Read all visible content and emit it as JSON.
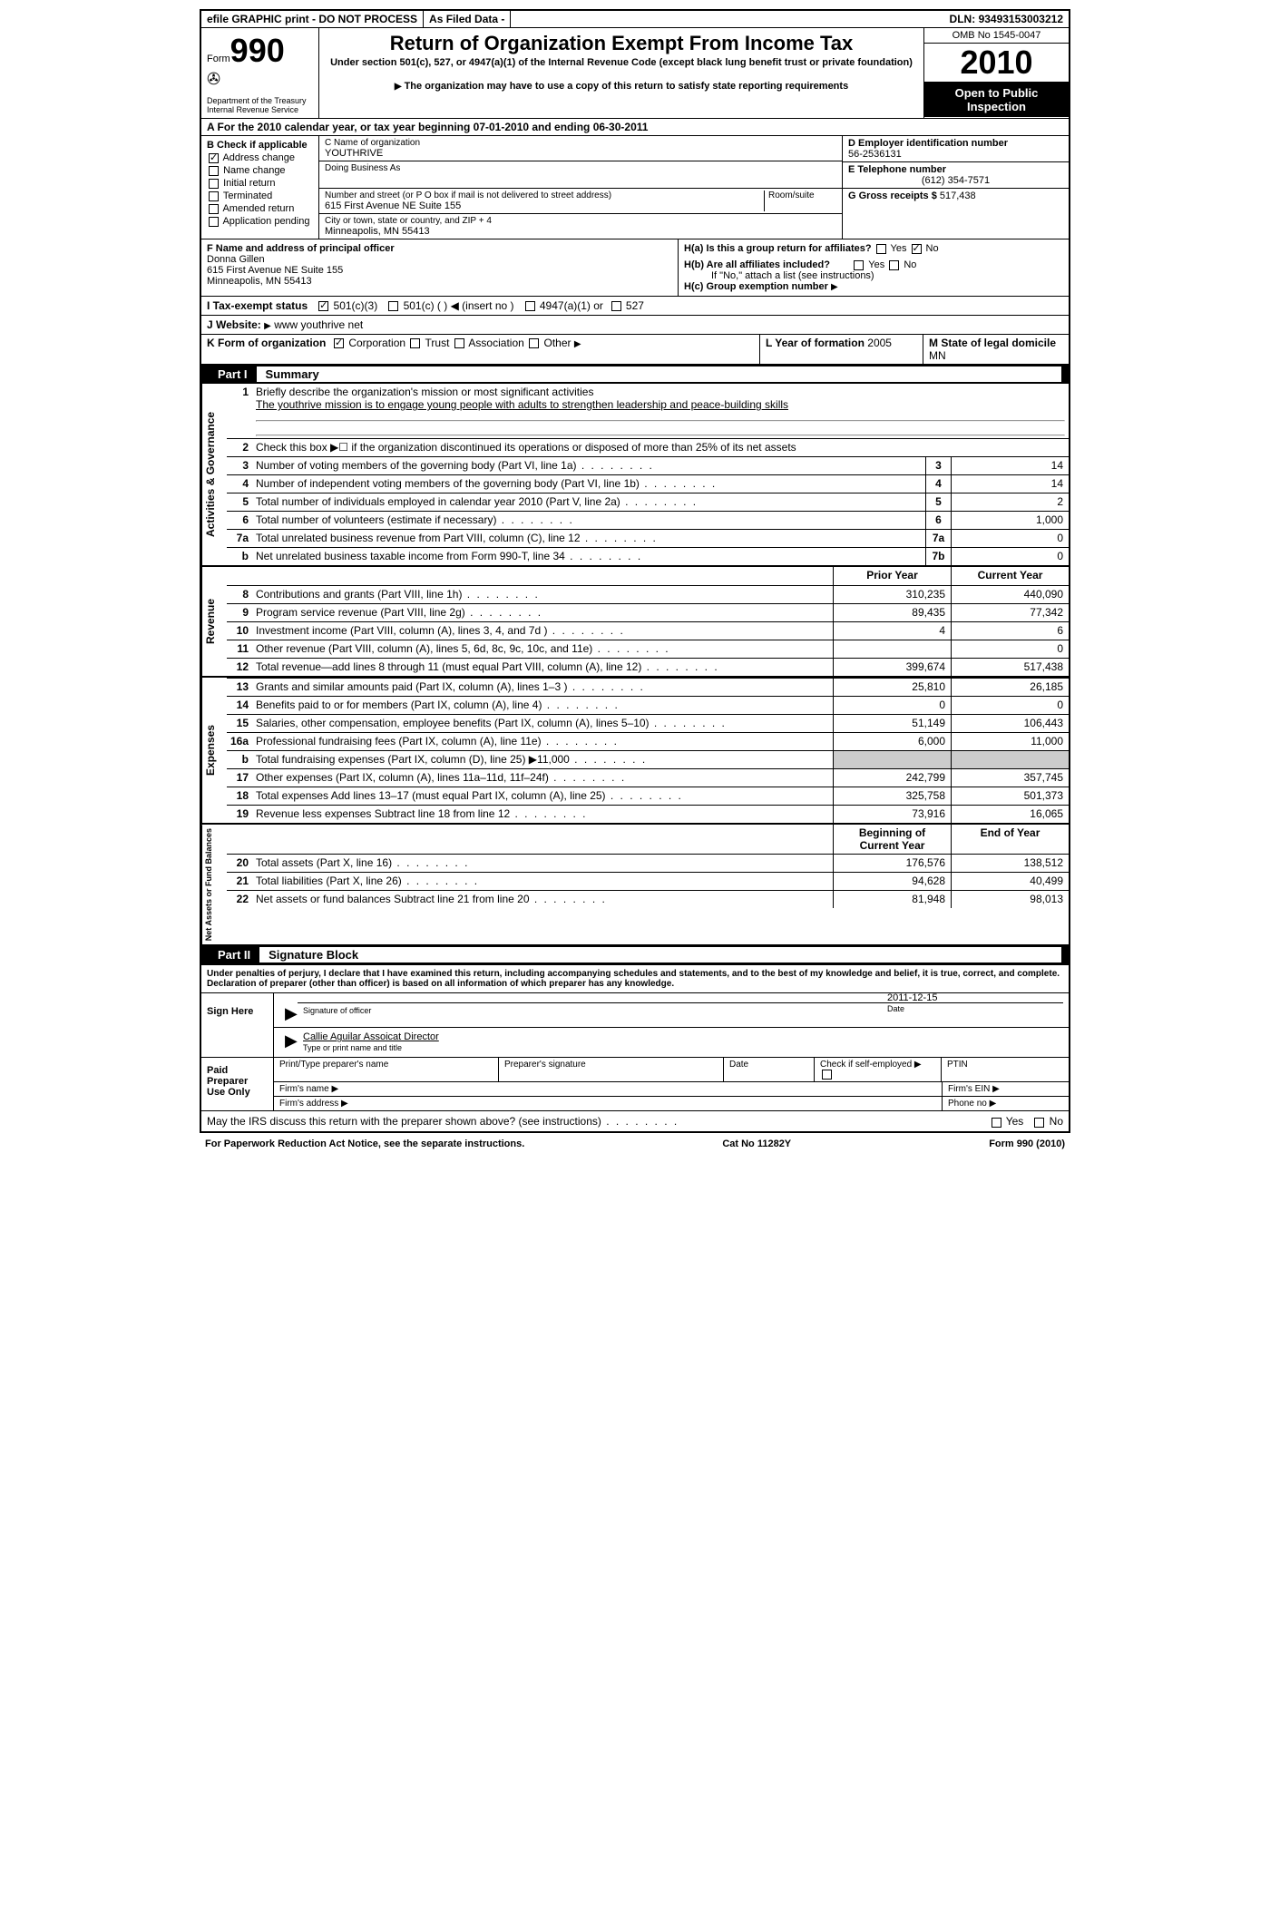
{
  "topbar": {
    "efile": "efile GRAPHIC print - DO NOT PROCESS",
    "asfiled": "As Filed Data -",
    "dln_label": "DLN:",
    "dln": "93493153003212"
  },
  "form": {
    "form_word": "Form",
    "number": "990",
    "dept": "Department of the Treasury",
    "irs": "Internal Revenue Service",
    "title": "Return of Organization Exempt From Income Tax",
    "subtitle": "Under section 501(c), 527, or 4947(a)(1) of the Internal Revenue Code (except black lung benefit trust or private foundation)",
    "note": "The organization may have to use a copy of this return to satisfy state reporting requirements",
    "omb": "OMB No 1545-0047",
    "year": "2010",
    "open": "Open to Public Inspection"
  },
  "section_a": "A  For the 2010 calendar year, or tax year beginning 07-01-2010    and ending 06-30-2011",
  "b": {
    "label": "B  Check if applicable",
    "items": [
      "Address change",
      "Name change",
      "Initial return",
      "Terminated",
      "Amended return",
      "Application pending"
    ]
  },
  "c": {
    "name_lbl": "C Name of organization",
    "name": "YOUTHRIVE",
    "dba_lbl": "Doing Business As",
    "dba": "",
    "street_lbl": "Number and street (or P O  box if mail is not delivered to street address)",
    "street": "615 First Avenue NE Suite 155",
    "room_lbl": "Room/suite",
    "city_lbl": "City or town, state or country, and ZIP + 4",
    "city": "Minneapolis, MN  55413"
  },
  "d": {
    "ein_lbl": "D Employer identification number",
    "ein": "56-2536131",
    "tel_lbl": "E Telephone number",
    "tel": "(612) 354-7571",
    "gross_lbl": "G Gross receipts $",
    "gross": "517,438"
  },
  "f": {
    "lbl": "F  Name and address of principal officer",
    "name": "Donna Gillen",
    "addr1": "615 First Avenue NE Suite 155",
    "addr2": "Minneapolis, MN  55413"
  },
  "h": {
    "a": "H(a)  Is this a group return for affiliates?",
    "b": "H(b)  Are all affiliates included?",
    "b_note": "If \"No,\" attach a list  (see instructions)",
    "c": "H(c)   Group exemption number"
  },
  "i": {
    "label": "I   Tax-exempt status",
    "o1": "501(c)(3)",
    "o2": "501(c) (   )",
    "o2b": "(insert no )",
    "o3": "4947(a)(1) or",
    "o4": "527"
  },
  "j": {
    "label": "J   Website:",
    "val": "www youthrive net"
  },
  "k": {
    "label": "K Form of organization",
    "opts": [
      "Corporation",
      "Trust",
      "Association",
      "Other"
    ],
    "l_label": "L Year of formation",
    "l_val": "2005",
    "m_label": "M State of legal domicile",
    "m_val": "MN"
  },
  "part1": {
    "label": "Part I",
    "title": "Summary"
  },
  "summary": {
    "l1_label": "Briefly describe the organization's mission or most significant activities",
    "l1_text": "The youthrive mission is to engage young people with adults to strengthen leadership and peace-building skills",
    "l2": "Check this box ▶☐ if the organization discontinued its operations or disposed of more than 25% of its net assets",
    "l3": "Number of voting members of the governing body (Part VI, line 1a)",
    "l4": "Number of independent voting members of the governing body (Part VI, line 1b)",
    "l5": "Total number of individuals employed in calendar year 2010 (Part V, line 2a)",
    "l6": "Total number of volunteers (estimate if necessary)",
    "l7a": "Total unrelated business revenue from Part VIII, column (C), line 12",
    "l7b": "Net unrelated business taxable income from Form 990-T, line 34",
    "v3": "14",
    "v4": "14",
    "v5": "2",
    "v6": "1,000",
    "v7a": "0",
    "v7b": "0",
    "prior": "Prior Year",
    "current": "Current Year",
    "rev": [
      {
        "n": "8",
        "t": "Contributions and grants (Part VIII, line 1h)",
        "p": "310,235",
        "c": "440,090"
      },
      {
        "n": "9",
        "t": "Program service revenue (Part VIII, line 2g)",
        "p": "89,435",
        "c": "77,342"
      },
      {
        "n": "10",
        "t": "Investment income (Part VIII, column (A), lines 3, 4, and 7d )",
        "p": "4",
        "c": "6"
      },
      {
        "n": "11",
        "t": "Other revenue (Part VIII, column (A), lines 5, 6d, 8c, 9c, 10c, and 11e)",
        "p": "",
        "c": "0"
      },
      {
        "n": "12",
        "t": "Total revenue—add lines 8 through 11 (must equal Part VIII, column (A), line 12)",
        "p": "399,674",
        "c": "517,438"
      }
    ],
    "exp": [
      {
        "n": "13",
        "t": "Grants and similar amounts paid (Part IX, column (A), lines 1–3 )",
        "p": "25,810",
        "c": "26,185"
      },
      {
        "n": "14",
        "t": "Benefits paid to or for members (Part IX, column (A), line 4)",
        "p": "0",
        "c": "0"
      },
      {
        "n": "15",
        "t": "Salaries, other compensation, employee benefits (Part IX, column (A), lines 5–10)",
        "p": "51,149",
        "c": "106,443"
      },
      {
        "n": "16a",
        "t": "Professional fundraising fees (Part IX, column (A), line 11e)",
        "p": "6,000",
        "c": "11,000"
      },
      {
        "n": "b",
        "t": "Total fundraising expenses (Part IX, column (D), line 25) ▶11,000",
        "p": "",
        "c": ""
      },
      {
        "n": "17",
        "t": "Other expenses (Part IX, column (A), lines 11a–11d, 11f–24f)",
        "p": "242,799",
        "c": "357,745"
      },
      {
        "n": "18",
        "t": "Total expenses  Add lines 13–17 (must equal Part IX, column (A), line 25)",
        "p": "325,758",
        "c": "501,373"
      },
      {
        "n": "19",
        "t": "Revenue less expenses  Subtract line 18 from line 12",
        "p": "73,916",
        "c": "16,065"
      }
    ],
    "boy": "Beginning of Current Year",
    "eoy": "End of Year",
    "net": [
      {
        "n": "20",
        "t": "Total assets (Part X, line 16)",
        "p": "176,576",
        "c": "138,512"
      },
      {
        "n": "21",
        "t": "Total liabilities (Part X, line 26)",
        "p": "94,628",
        "c": "40,499"
      },
      {
        "n": "22",
        "t": "Net assets or fund balances  Subtract line 21 from line 20",
        "p": "81,948",
        "c": "98,013"
      }
    ]
  },
  "tabs": {
    "ag": "Activities & Governance",
    "rev": "Revenue",
    "exp": "Expenses",
    "net": "Net Assets or Fund Balances"
  },
  "part2": {
    "label": "Part II",
    "title": "Signature Block"
  },
  "perjury": "Under penalties of perjury, I declare that I have examined this return, including accompanying schedules and statements, and to the best of my knowledge and belief, it is true, correct, and complete. Declaration of preparer (other than officer) is based on all information of which preparer has any knowledge.",
  "sign": {
    "here": "Sign Here",
    "sig_lbl": "Signature of officer",
    "date_lbl": "Date",
    "date": "2011-12-15",
    "name": "Callie Aguilar Assoicat Director",
    "name_lbl": "Type or print name and title"
  },
  "paid": {
    "label": "Paid Preparer Use Only",
    "h1": "Print/Type preparer's name",
    "h2": "Preparer's signature",
    "h3": "Date",
    "h4": "Check if self-employed ▶",
    "h5": "PTIN",
    "firm": "Firm's name  ▶",
    "firm_ein": "Firm's EIN  ▶",
    "addr": "Firm's address ▶",
    "phone": "Phone no  ▶"
  },
  "discuss": "May the IRS discuss this return with the preparer shown above? (see instructions)",
  "footer": {
    "pra": "For Paperwork Reduction Act Notice, see the separate instructions.",
    "cat": "Cat No 11282Y",
    "form": "Form 990 (2010)"
  }
}
